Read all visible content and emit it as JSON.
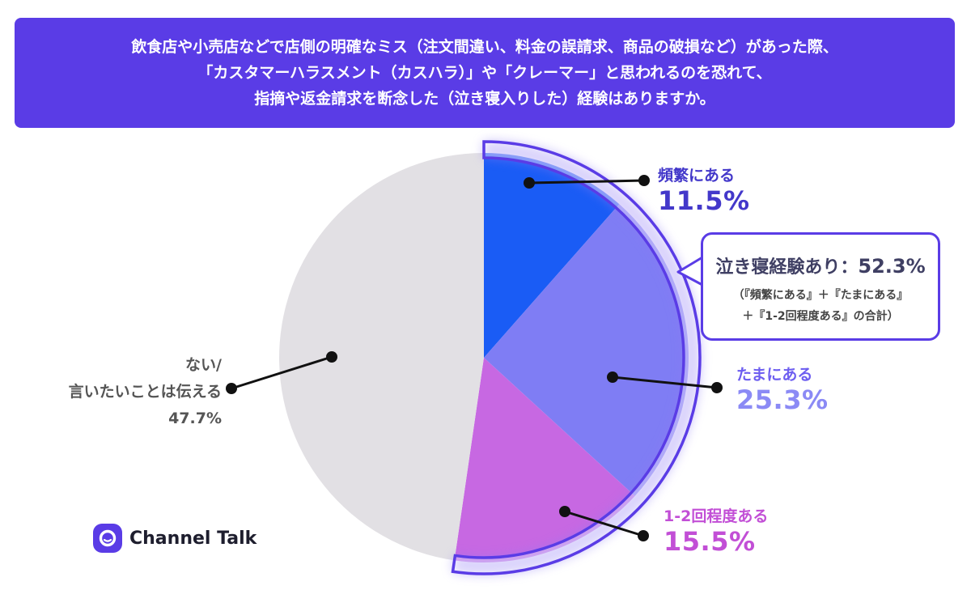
{
  "header": {
    "lines": [
      "飲食店や小売店などで店側の明確なミス（注文間違い、料金の誤請求、商品の破損など）があった際、",
      "「カスタマーハラスメント（カスハラ）」や「クレーマー」と思われるのを恐れて、",
      "指摘や返金請求を断念した（泣き寝入りした）経験はありますか。"
    ]
  },
  "chart_data": {
    "type": "pie",
    "start_angle_deg": 0,
    "direction": "clockwise",
    "slices": [
      {
        "label": "頻繁にある",
        "value": 11.5,
        "value_text": "11.5%",
        "color": "#1a5cf5"
      },
      {
        "label": "たまにある",
        "value": 25.3,
        "value_text": "25.3%",
        "color": "#7f7df4"
      },
      {
        "label": "1-2回程度ある",
        "value": 15.5,
        "value_text": "15.5%",
        "color": "#c768e2"
      },
      {
        "label_lines": [
          "ない/",
          "言いたいことは伝える"
        ],
        "value": 47.7,
        "value_text": "47.7%",
        "color": "#e2e0e4"
      }
    ],
    "highlight": {
      "title": "泣き寝経験あり：",
      "value_text": "52.3%",
      "note_lines": [
        "（『頻繁にある』＋『たまにある』",
        "＋『1-2回程度ある』の合計）"
      ],
      "accent_color": "#5a3ce6"
    }
  },
  "brand": {
    "name": "Channel Talk",
    "color": "#5a3ce6"
  }
}
